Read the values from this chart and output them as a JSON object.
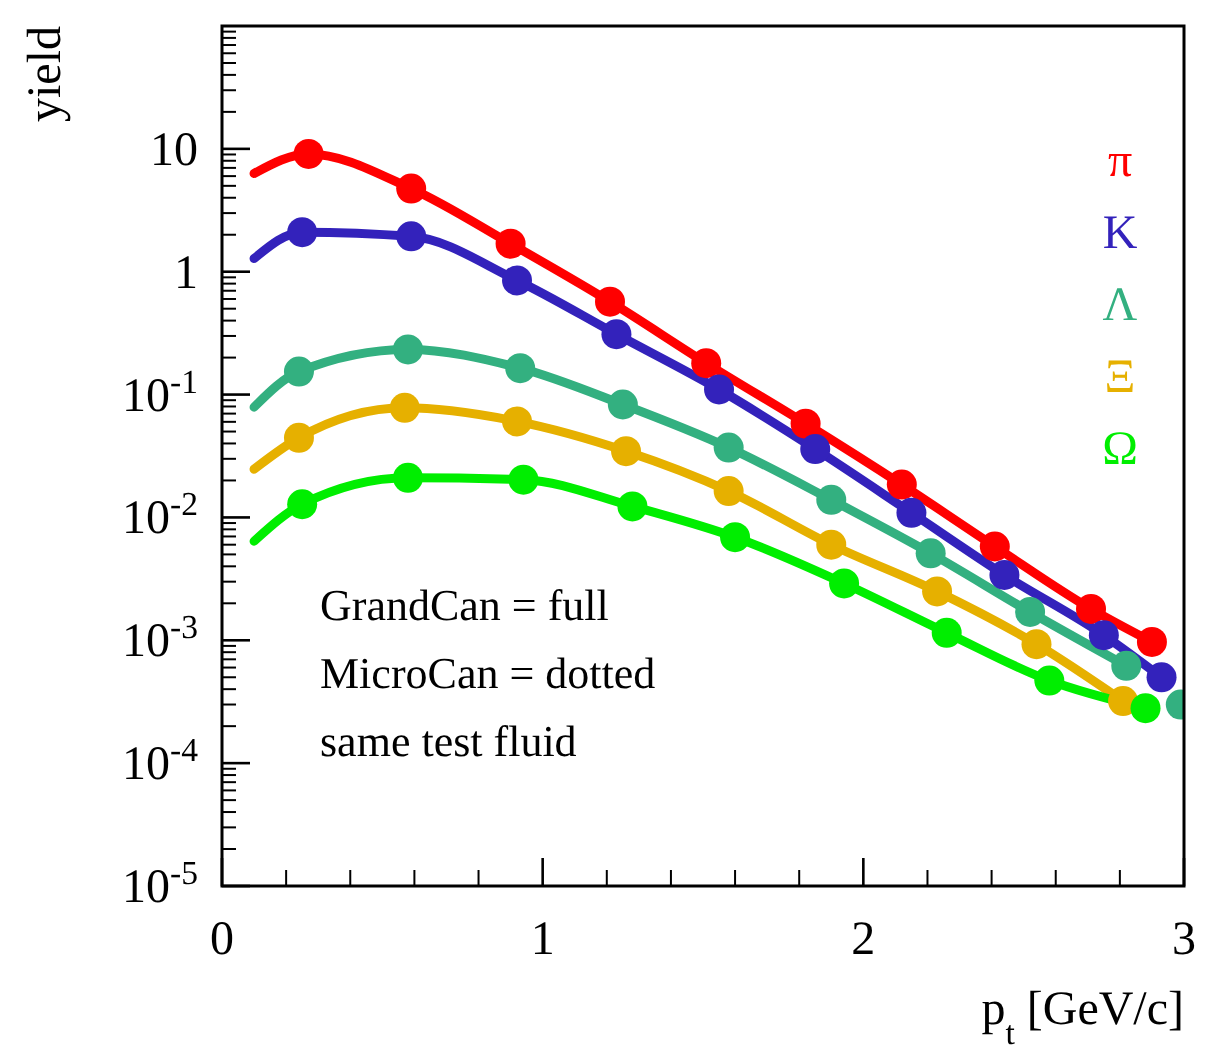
{
  "chart_data": {
    "type": "line",
    "xlabel": "p$_{t}$ [GeV/c]",
    "ylabel": "yield",
    "xlim": [
      0,
      3
    ],
    "xticks": [
      0,
      1,
      2,
      3
    ],
    "ylim": [
      1e-05,
      100
    ],
    "log": true,
    "yticks": [
      {
        "value": 1e-05,
        "label": "10$^{-5}$"
      },
      {
        "value": 0.0001,
        "label": "10$^{-4}$"
      },
      {
        "value": 0.001,
        "label": "10$^{-3}$"
      },
      {
        "value": 0.01,
        "label": "10$^{-2}$"
      },
      {
        "value": 0.1,
        "label": "10$^{-1}$"
      },
      {
        "value": 1,
        "label": "1"
      },
      {
        "value": 10,
        "label": "10"
      }
    ],
    "grid": false,
    "legend": "top right",
    "annotations": [
      "GrandCan = full",
      "MicroCan = dotted",
      "same test fluid"
    ],
    "series": [
      {
        "name": "π",
        "marker": "none",
        "color": "#ff0000",
        "x": [
          0.1,
          0.27,
          0.59,
          0.9,
          1.21,
          1.51,
          1.82,
          2.12,
          2.41,
          2.71,
          2.9
        ],
        "values": [
          6.3,
          9.1,
          4.75,
          1.69,
          0.57,
          0.18,
          0.058,
          0.0185,
          0.0058,
          0.0018,
          0.00097
        ]
      },
      {
        "name": "K",
        "marker": "none",
        "color": "#3322bb",
        "x": [
          0.1,
          0.25,
          0.59,
          0.92,
          1.23,
          1.55,
          1.85,
          2.15,
          2.44,
          2.75,
          2.93
        ],
        "values": [
          1.28,
          2.1,
          1.94,
          0.85,
          0.31,
          0.11,
          0.036,
          0.0109,
          0.0034,
          0.0011,
          0.0005
        ]
      },
      {
        "name": "Λ",
        "marker": "none",
        "color": "#33b080",
        "x": [
          0.1,
          0.24,
          0.58,
          0.93,
          1.25,
          1.58,
          1.9,
          2.21,
          2.52,
          2.82
        ],
        "values": [
          0.079,
          0.154,
          0.233,
          0.164,
          0.083,
          0.037,
          0.0139,
          0.0051,
          0.0017,
          0.00062
        ]
      },
      {
        "name": "Ξ",
        "marker": "none",
        "color": "#e6b000",
        "x": [
          0.1,
          0.24,
          0.57,
          0.92,
          1.26,
          1.58,
          1.9,
          2.23,
          2.54,
          2.81
        ],
        "values": [
          0.0247,
          0.0445,
          0.078,
          0.0605,
          0.0346,
          0.0164,
          0.006,
          0.0025,
          0.00093,
          0.00032
        ]
      },
      {
        "name": "Ω",
        "marker": "none",
        "color": "#00ee00",
        "x": [
          0.1,
          0.25,
          0.58,
          0.94,
          1.28,
          1.6,
          1.94,
          2.26,
          2.58,
          2.88
        ],
        "values": [
          0.0064,
          0.0128,
          0.021,
          0.0203,
          0.0123,
          0.0069,
          0.0029,
          0.00115,
          0.00047,
          0.00028
        ]
      },
      {
        "type": "scatter",
        "marker": "circle",
        "color": "#ff0000",
        "x": [
          0.27,
          0.59,
          0.9,
          1.21,
          1.51,
          1.82,
          2.12,
          2.41,
          2.71,
          2.9
        ],
        "values": [
          9.1,
          4.75,
          1.69,
          0.57,
          0.18,
          0.058,
          0.0185,
          0.0058,
          0.0018,
          0.00097
        ]
      },
      {
        "type": "scatter",
        "marker": "circle",
        "color": "#3322bb",
        "x": [
          0.25,
          0.59,
          0.92,
          1.23,
          1.55,
          1.85,
          2.15,
          2.44,
          2.75,
          2.93
        ],
        "values": [
          2.1,
          1.94,
          0.85,
          0.31,
          0.11,
          0.036,
          0.0109,
          0.0034,
          0.0011,
          0.0005
        ]
      },
      {
        "type": "scatter",
        "marker": "circle",
        "color": "#33b080",
        "x": [
          0.24,
          0.58,
          0.93,
          1.25,
          1.58,
          1.9,
          2.21,
          2.52,
          2.82,
          2.99
        ],
        "values": [
          0.154,
          0.233,
          0.164,
          0.083,
          0.037,
          0.0139,
          0.0051,
          0.0017,
          0.00062,
          0.0003
        ]
      },
      {
        "type": "scatter",
        "marker": "circle",
        "color": "#e6b000",
        "x": [
          0.24,
          0.57,
          0.92,
          1.26,
          1.58,
          1.9,
          2.23,
          2.54,
          2.81
        ],
        "values": [
          0.0445,
          0.078,
          0.0605,
          0.0346,
          0.0164,
          0.006,
          0.0025,
          0.00093,
          0.00032
        ]
      },
      {
        "type": "scatter",
        "marker": "circle",
        "color": "#00ee00",
        "x": [
          0.25,
          0.58,
          0.94,
          1.28,
          1.6,
          1.94,
          2.26,
          2.58,
          2.88
        ],
        "values": [
          0.0128,
          0.021,
          0.0203,
          0.0123,
          0.0069,
          0.0029,
          0.00115,
          0.00047,
          0.00028
        ]
      }
    ]
  }
}
